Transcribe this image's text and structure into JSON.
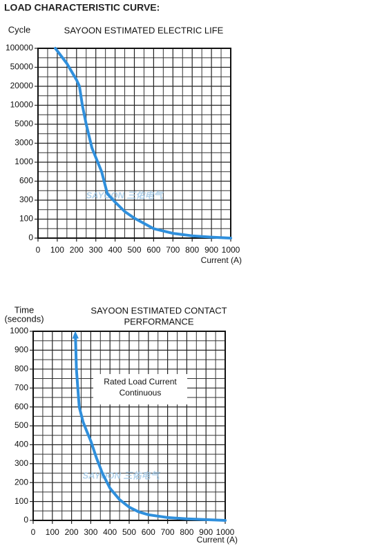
{
  "header": {
    "title": "LOAD CHARACTERISTIC CURVE:"
  },
  "chart_data": [
    {
      "type": "line",
      "title": [
        "SAYOON ESTIMATED ELECTRIC LIFE"
      ],
      "y_label": [
        "Cycle"
      ],
      "x_label": "Current (A)",
      "watermark": "SAYOON 三佑电气",
      "yscale": "tick-spaced",
      "color": "#2f8fdc",
      "grid": true,
      "xlim": [
        0,
        1000
      ],
      "xticks": [
        0,
        100,
        200,
        300,
        400,
        500,
        600,
        700,
        800,
        900,
        1000
      ],
      "ylim": [
        0,
        100000
      ],
      "yticks": [
        0,
        100,
        300,
        600,
        1000,
        3000,
        5000,
        10000,
        20000,
        50000,
        100000
      ],
      "x": [
        90,
        150,
        200,
        215,
        230,
        250,
        280,
        300,
        330,
        360,
        400,
        450,
        500,
        600,
        700,
        800,
        900,
        1000
      ],
      "values": [
        100000,
        60000,
        30000,
        20000,
        10000,
        5000,
        2500,
        1500,
        800,
        400,
        280,
        180,
        110,
        50,
        25,
        12,
        5,
        0
      ]
    },
    {
      "type": "line",
      "title": [
        "SAYOON ESTIMATED CONTACT",
        "PERFORMANCE"
      ],
      "y_label": [
        "Time",
        "(seconds)"
      ],
      "x_label": "Current (A)",
      "watermark": "SAYOON 三佑电气",
      "annotation": [
        "Rated Load Current",
        "Continuous"
      ],
      "yscale": "linear",
      "color": "#2f8fdc",
      "grid": true,
      "xlim": [
        0,
        1000
      ],
      "xticks": [
        0,
        100,
        200,
        300,
        400,
        500,
        600,
        700,
        800,
        900,
        1000
      ],
      "ylim": [
        0,
        1000
      ],
      "yticks": [
        0,
        100,
        200,
        300,
        400,
        500,
        600,
        700,
        800,
        900,
        1000
      ],
      "x": [
        220,
        225,
        240,
        260,
        280,
        300,
        330,
        360,
        400,
        450,
        500,
        550,
        600,
        700,
        800,
        900,
        1000
      ],
      "values": [
        980,
        800,
        600,
        520,
        470,
        420,
        330,
        250,
        170,
        110,
        70,
        45,
        30,
        15,
        8,
        4,
        0
      ]
    }
  ]
}
